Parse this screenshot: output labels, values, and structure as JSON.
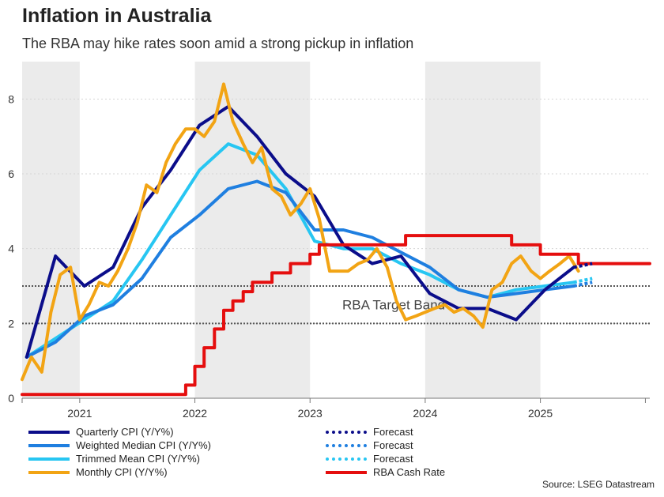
{
  "title": "Inflation in Australia",
  "subtitle": "The RBA may hike rates soon amid a strong pickup in inflation",
  "source": "Source: LSEG Datastream",
  "colors": {
    "quarterly": "#0b0d8a",
    "weighted": "#1f7fe0",
    "trimmed": "#27c6f2",
    "monthly": "#f2a414",
    "cash": "#e50e0e",
    "band": "#555555",
    "shade": "#ebebeb"
  },
  "legend": {
    "quarterly": "Quarterly CPI (Y/Y%)",
    "weighted": "Weighted Median CPI (Y/Y%)",
    "trimmed": "Trimmed Mean CPI (Y/Y%)",
    "monthly": "Monthly CPI (Y/Y%)",
    "forecast1": "Forecast",
    "forecast2": "Forecast",
    "forecast3": "Forecast",
    "cash": "RBA Cash Rate"
  },
  "chart_data": {
    "type": "line",
    "title": "Inflation in Australia",
    "subtitle": "The RBA may hike rates soon amid a strong pickup in inflation",
    "xlabel": "",
    "ylabel": "",
    "x_range": [
      2020.5,
      2025.95
    ],
    "ylim": [
      0,
      9
    ],
    "y_ticks": [
      0,
      2,
      4,
      6,
      8
    ],
    "x_ticks": [
      {
        "label": "2021",
        "x": 2021.0
      },
      {
        "label": "2022",
        "x": 2022.0
      },
      {
        "label": "2023",
        "x": 2023.0
      },
      {
        "label": "2024",
        "x": 2024.0
      },
      {
        "label": "2025",
        "x": 2025.0
      }
    ],
    "shaded_years": [
      [
        2020.5,
        2021.0
      ],
      [
        2022.0,
        2023.0
      ],
      [
        2024.0,
        2025.0
      ]
    ],
    "target_band": {
      "low": 2,
      "high": 3,
      "label": "RBA Target Band"
    },
    "series": [
      {
        "key": "trimmed",
        "name": "Trimmed Mean CPI (Y/Y%)",
        "x": [
          2020.54,
          2020.79,
          2021.04,
          2021.29,
          2021.54,
          2021.79,
          2022.04,
          2022.29,
          2022.54,
          2022.79,
          2023.04,
          2023.29,
          2023.54,
          2023.79,
          2024.04,
          2024.29,
          2024.54,
          2024.79,
          2025.04,
          2025.29
        ],
        "y": [
          1.1,
          1.6,
          2.1,
          2.6,
          3.7,
          4.9,
          6.1,
          6.8,
          6.5,
          5.6,
          4.2,
          4.0,
          4.0,
          3.6,
          3.3,
          2.9,
          2.7,
          2.9,
          3.0,
          3.1
        ]
      },
      {
        "key": "weighted",
        "name": "Weighted Median CPI (Y/Y%)",
        "x": [
          2020.54,
          2020.79,
          2021.04,
          2021.29,
          2021.54,
          2021.79,
          2022.04,
          2022.29,
          2022.54,
          2022.79,
          2023.04,
          2023.29,
          2023.54,
          2023.79,
          2024.04,
          2024.29,
          2024.54,
          2024.79,
          2025.04,
          2025.29
        ],
        "y": [
          1.1,
          1.5,
          2.2,
          2.5,
          3.2,
          4.3,
          4.9,
          5.6,
          5.8,
          5.5,
          4.5,
          4.5,
          4.3,
          3.9,
          3.5,
          2.9,
          2.7,
          2.8,
          2.9,
          3.0
        ]
      },
      {
        "key": "quarterly",
        "name": "Quarterly CPI (Y/Y%)",
        "x": [
          2020.54,
          2020.79,
          2021.04,
          2021.29,
          2021.54,
          2021.79,
          2022.04,
          2022.29,
          2022.54,
          2022.79,
          2023.04,
          2023.29,
          2023.54,
          2023.79,
          2024.04,
          2024.29,
          2024.54,
          2024.79,
          2025.04,
          2025.29
        ],
        "y": [
          1.1,
          3.8,
          3.0,
          3.5,
          5.1,
          6.1,
          7.3,
          7.8,
          7.0,
          6.0,
          5.4,
          4.1,
          3.6,
          3.8,
          2.8,
          2.4,
          2.4,
          2.1,
          2.9,
          3.5
        ]
      },
      {
        "key": "monthly",
        "name": "Monthly CPI (Y/Y%)",
        "x": [
          2020.5,
          2020.58,
          2020.67,
          2020.75,
          2020.83,
          2020.92,
          2021.0,
          2021.08,
          2021.17,
          2021.25,
          2021.33,
          2021.42,
          2021.5,
          2021.58,
          2021.67,
          2021.75,
          2021.83,
          2021.92,
          2022.0,
          2022.08,
          2022.17,
          2022.25,
          2022.33,
          2022.42,
          2022.5,
          2022.58,
          2022.67,
          2022.75,
          2022.83,
          2022.92,
          2023.0,
          2023.08,
          2023.17,
          2023.25,
          2023.33,
          2023.42,
          2023.5,
          2023.58,
          2023.67,
          2023.75,
          2023.83,
          2023.92,
          2024.0,
          2024.08,
          2024.17,
          2024.25,
          2024.33,
          2024.42,
          2024.5,
          2024.58,
          2024.67,
          2024.75,
          2024.83,
          2024.92,
          2025.0,
          2025.08,
          2025.17,
          2025.25,
          2025.33
        ],
        "y": [
          0.5,
          1.1,
          0.7,
          2.3,
          3.3,
          3.5,
          2.1,
          2.5,
          3.1,
          3.0,
          3.4,
          4.0,
          4.7,
          5.7,
          5.5,
          6.3,
          6.8,
          7.2,
          7.2,
          7.0,
          7.4,
          8.4,
          7.4,
          6.8,
          6.3,
          6.7,
          5.6,
          5.4,
          4.9,
          5.2,
          5.6,
          4.8,
          3.4,
          3.4,
          3.4,
          3.6,
          3.7,
          4.0,
          3.5,
          2.6,
          2.1,
          2.2,
          2.3,
          2.4,
          2.5,
          2.3,
          2.4,
          2.2,
          1.9,
          2.9,
          3.1,
          3.6,
          3.8,
          3.4,
          3.2,
          3.4,
          3.6,
          3.8,
          3.4
        ]
      },
      {
        "key": "cash",
        "name": "RBA Cash Rate",
        "x": [
          2020.5,
          2021.84,
          2021.92,
          2022.0,
          2022.08,
          2022.17,
          2022.25,
          2022.33,
          2022.42,
          2022.5,
          2022.58,
          2022.67,
          2022.83,
          2022.92,
          2023.0,
          2023.08,
          2023.17,
          2023.25,
          2023.83,
          2024.0,
          2024.5,
          2024.75,
          2024.87,
          2025.0,
          2025.17,
          2025.33,
          2025.5,
          2025.75,
          2025.95
        ],
        "y": [
          0.1,
          0.1,
          0.35,
          0.85,
          1.35,
          1.85,
          2.35,
          2.6,
          2.85,
          3.1,
          3.1,
          3.35,
          3.6,
          3.6,
          3.85,
          4.1,
          4.1,
          4.1,
          4.35,
          4.35,
          4.35,
          4.1,
          4.1,
          3.85,
          3.85,
          3.6,
          3.6,
          3.6,
          3.6
        ],
        "step": true
      },
      {
        "key": "quarterly",
        "name": "Forecast",
        "dashed": true,
        "x": [
          2025.29,
          2025.45
        ],
        "y": [
          3.5,
          3.6
        ]
      },
      {
        "key": "weighted",
        "name": "Forecast",
        "dashed": true,
        "x": [
          2025.29,
          2025.45
        ],
        "y": [
          3.0,
          3.1
        ]
      },
      {
        "key": "trimmed",
        "name": "Forecast",
        "dashed": true,
        "x": [
          2025.29,
          2025.45
        ],
        "y": [
          3.1,
          3.2
        ]
      }
    ]
  }
}
